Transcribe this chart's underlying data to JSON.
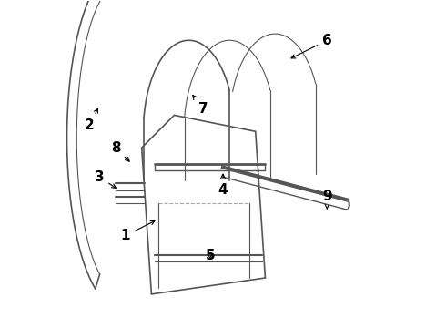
{
  "background_color": "#ffffff",
  "line_color": "#555555",
  "fig_width": 4.9,
  "fig_height": 3.6,
  "dpi": 100,
  "label_fontsize": 11
}
